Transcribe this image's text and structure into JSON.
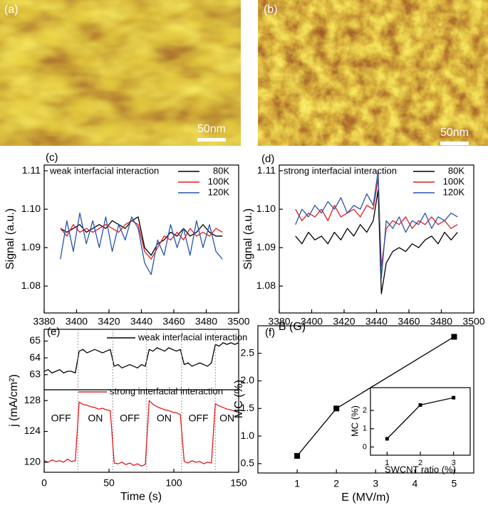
{
  "images": [
    {
      "label": "(a)",
      "scale_bar": "50nm"
    },
    {
      "label": "(b)",
      "scale_bar": "50nm"
    }
  ],
  "chart_data": [
    {
      "type": "line",
      "label": "(c)",
      "annotation": "weak interfacial interaction",
      "ylabel": "Signal (a.u.)",
      "xlim": [
        3380,
        3500
      ],
      "xticks": [
        3380,
        3400,
        3420,
        3440,
        3460,
        3480,
        3500
      ],
      "ylim": [
        1.073,
        1.1115
      ],
      "yticks": [
        1.08,
        1.09,
        {
          "value": 1.1,
          "label": "1.10"
        },
        1.11
      ],
      "x": [
        3390,
        3394,
        3398,
        3402,
        3406,
        3410,
        3414,
        3418,
        3422,
        3426,
        3430,
        3434,
        3438,
        3442,
        3446,
        3450,
        3454,
        3458,
        3462,
        3466,
        3470,
        3474,
        3478,
        3482,
        3486,
        3490
      ],
      "series": [
        {
          "name": "80K",
          "color": "#000000",
          "values": [
            1.095,
            1.094,
            1.095,
            1.096,
            1.094,
            1.095,
            1.096,
            1.095,
            1.097,
            1.096,
            1.095,
            1.097,
            1.098,
            1.09,
            1.088,
            1.091,
            1.092,
            1.094,
            1.093,
            1.095,
            1.093,
            1.094,
            1.096,
            1.094,
            1.093,
            1.093
          ]
        },
        {
          "name": "100K",
          "color": "#e41a1c",
          "values": [
            1.095,
            1.093,
            1.096,
            1.094,
            1.095,
            1.094,
            1.095,
            1.096,
            1.095,
            1.094,
            1.096,
            1.097,
            1.096,
            1.089,
            1.087,
            1.09,
            1.093,
            1.092,
            1.094,
            1.092,
            1.095,
            1.093,
            1.094,
            1.093,
            1.095,
            1.094
          ]
        },
        {
          "name": "120K",
          "color": "#2855a8",
          "values": [
            1.087,
            1.097,
            1.089,
            1.099,
            1.091,
            1.097,
            1.09,
            1.098,
            1.089,
            1.096,
            1.092,
            1.098,
            1.095,
            1.086,
            1.083,
            1.092,
            1.088,
            1.096,
            1.09,
            1.095,
            1.088,
            1.097,
            1.09,
            1.096,
            1.089,
            1.087
          ]
        }
      ]
    },
    {
      "type": "line",
      "label": "(d)",
      "annotation": "strong interfacial interaction",
      "xlabel": "B (G)",
      "ylabel": "Signal (a.u.)",
      "xlim": [
        3380,
        3500
      ],
      "xticks": [
        3380,
        3400,
        3420,
        3440,
        3460,
        3480,
        3500
      ],
      "ylim": [
        1.073,
        1.1115
      ],
      "yticks": [
        1.08,
        1.09,
        {
          "value": 1.1,
          "label": "1.10"
        },
        1.11
      ],
      "x": [
        3390,
        3394,
        3398,
        3402,
        3406,
        3410,
        3414,
        3418,
        3422,
        3426,
        3430,
        3434,
        3438,
        3441,
        3443,
        3446,
        3450,
        3454,
        3458,
        3462,
        3466,
        3470,
        3474,
        3478,
        3482,
        3486,
        3490
      ],
      "series": [
        {
          "name": "80K",
          "color": "#000000",
          "values": [
            1.093,
            1.091,
            1.094,
            1.092,
            1.093,
            1.091,
            1.094,
            1.092,
            1.095,
            1.093,
            1.096,
            1.094,
            1.097,
            1.105,
            1.078,
            1.086,
            1.089,
            1.09,
            1.089,
            1.091,
            1.09,
            1.092,
            1.093,
            1.091,
            1.094,
            1.092,
            1.094
          ]
        },
        {
          "name": "100K",
          "color": "#e41a1c",
          "values": [
            1.1,
            1.097,
            1.099,
            1.098,
            1.1,
            1.097,
            1.101,
            1.098,
            1.099,
            1.1,
            1.098,
            1.101,
            1.1,
            1.108,
            1.085,
            1.095,
            1.097,
            1.096,
            1.098,
            1.095,
            1.097,
            1.096,
            1.098,
            1.096,
            1.097,
            1.095,
            1.096
          ]
        },
        {
          "name": "120K",
          "color": "#2855a8",
          "values": [
            1.096,
            1.1,
            1.098,
            1.101,
            1.099,
            1.102,
            1.1,
            1.103,
            1.099,
            1.101,
            1.1,
            1.104,
            1.101,
            1.11,
            1.082,
            1.097,
            1.095,
            1.098,
            1.094,
            1.097,
            1.096,
            1.099,
            1.095,
            1.098,
            1.097,
            1.099,
            1.098
          ]
        }
      ]
    },
    {
      "type": "line",
      "label": "(e)",
      "xlim": [
        0,
        150
      ],
      "ylim": [
        62.1,
        65.7
      ],
      "yticks": [
        63,
        64,
        65
      ],
      "x": [
        0,
        3,
        6,
        9,
        12,
        15,
        18,
        21,
        24,
        27,
        30,
        33,
        36,
        39,
        42,
        45,
        48,
        51,
        54,
        57,
        60,
        63,
        66,
        69,
        72,
        75,
        78,
        81,
        84,
        87,
        90,
        93,
        96,
        99,
        102,
        105,
        108,
        111,
        114,
        117,
        120,
        123,
        126,
        129,
        132,
        135,
        138,
        141,
        144,
        147,
        150
      ],
      "series": [
        {
          "name": "weak interfacial interaction",
          "color": "#000000",
          "values": [
            63.2,
            63.3,
            63.1,
            63.2,
            63.3,
            63.1,
            63.2,
            63.2,
            63.1,
            64.4,
            64.5,
            64.3,
            64.4,
            64.5,
            64.4,
            64.3,
            64.4,
            64.5,
            63.5,
            63.6,
            63.4,
            63.5,
            63.6,
            63.5,
            63.4,
            63.6,
            63.5,
            64.5,
            64.4,
            64.6,
            64.5,
            64.4,
            64.6,
            64.5,
            64.4,
            64.5,
            63.6,
            63.7,
            63.5,
            63.6,
            63.7,
            63.6,
            63.5,
            63.7,
            64.8,
            64.7,
            64.9,
            64.8,
            64.9,
            64.8,
            64.9
          ]
        }
      ]
    },
    {
      "type": "line",
      "xlabel": "Time (s)",
      "ylabel": "j (mA/cm²)",
      "xlim": [
        0,
        150
      ],
      "xticks": [
        0,
        50,
        100,
        150
      ],
      "ylim": [
        118.7,
        129.4
      ],
      "yticks": [
        120,
        124,
        128
      ],
      "switch_times": [
        26,
        53,
        79,
        106,
        132
      ],
      "annotations": [
        "OFF",
        "ON",
        "OFF",
        "ON",
        "OFF",
        "ON"
      ],
      "x": [
        0,
        3,
        6,
        9,
        12,
        15,
        18,
        21,
        24,
        27,
        30,
        33,
        36,
        39,
        42,
        45,
        48,
        51,
        54,
        57,
        60,
        63,
        66,
        69,
        72,
        75,
        78,
        81,
        84,
        87,
        90,
        93,
        96,
        99,
        102,
        105,
        108,
        111,
        114,
        117,
        120,
        123,
        126,
        129,
        132,
        135,
        138,
        141,
        144,
        147,
        150
      ],
      "series": [
        {
          "name": "strong interfacial interaction",
          "color": "#e41a1c",
          "values": [
            120.2,
            120.0,
            120.3,
            120.1,
            120.2,
            120.0,
            120.4,
            120.1,
            120.2,
            127.8,
            127.5,
            127.4,
            127.2,
            127.1,
            126.9,
            127.0,
            126.8,
            126.7,
            119.9,
            119.8,
            120.0,
            119.7,
            119.9,
            119.6,
            119.8,
            119.5,
            119.7,
            128.0,
            127.5,
            127.2,
            127.0,
            126.8,
            126.7,
            126.5,
            126.4,
            126.2,
            120.1,
            119.9,
            120.2,
            120.0,
            120.1,
            119.8,
            120.0,
            119.9,
            127.6,
            127.3,
            127.1,
            126.9,
            126.8,
            126.6,
            126.5
          ]
        }
      ]
    },
    {
      "type": "line",
      "label": "(f)",
      "xlabel": "E (MV/m)",
      "ylabel": "MC (%)",
      "marker": "square",
      "xlim": [
        0,
        5.5
      ],
      "xticks": [
        1,
        2,
        3,
        4,
        5
      ],
      "ylim": [
        0.33,
        3.0
      ],
      "yticks": [
        0.5,
        {
          "value": 1,
          "label": "1.0"
        },
        1.5,
        {
          "value": 2,
          "label": "2.0"
        },
        2.5
      ],
      "x": [
        1,
        2,
        5
      ],
      "series": [
        {
          "color": "#000000",
          "values": [
            0.64,
            1.5,
            2.8
          ]
        }
      ]
    },
    {
      "type": "line",
      "xlabel": "SWCNT ratio (%)",
      "ylabel": "MC (%)",
      "marker": "square",
      "xlim": [
        0.5,
        3.5
      ],
      "xticks": [
        1,
        2,
        3
      ],
      "ylim": [
        -0.45,
        3.25
      ],
      "yticks": [
        0,
        1,
        2
      ],
      "x": [
        1,
        2,
        3
      ],
      "series": [
        {
          "color": "#000000",
          "values": [
            0.45,
            2.3,
            2.7
          ]
        }
      ]
    }
  ]
}
